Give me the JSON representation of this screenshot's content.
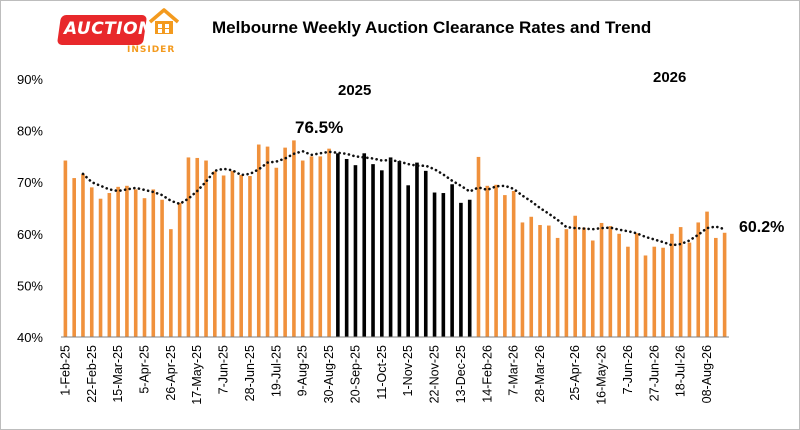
{
  "header": {
    "title": "Melbourne Weekly Auction Clearance Rates and Trend",
    "logo_word": "AUCTION",
    "logo_sub": "INSIDER"
  },
  "colors": {
    "bar_default": "#f0913c",
    "bar_highlight": "#000000",
    "trend": "#111111",
    "logo_red": "#e8282b",
    "logo_orange": "#f39a1e"
  },
  "chart_data": {
    "type": "bar",
    "title": "Melbourne Weekly Auction Clearance Rates and Trend",
    "xlabel": "",
    "ylabel": "",
    "ylim": [
      40,
      90
    ],
    "y_ticks": [
      "40%",
      "50%",
      "60%",
      "70%",
      "80%",
      "90%"
    ],
    "y_tick_values": [
      40,
      50,
      60,
      70,
      80,
      90
    ],
    "grid": false,
    "x_tick_labels": [
      "1-Feb-25",
      "22-Feb-25",
      "15-Mar-25",
      "5-Apr-25",
      "26-Apr-25",
      "17-May-25",
      "7-Jun-25",
      "28-Jun-25",
      "19-Jul-25",
      "9-Aug-25",
      "30-Aug-25",
      "20-Sep-25",
      "11-Oct-25",
      "1-Nov-25",
      "22-Nov-25",
      "13-Dec-25",
      "14-Feb-26",
      "7-Mar-26",
      "28-Mar-26",
      "25-Apr-26",
      "16-May-26",
      "7-Jun-26",
      "27-Jun-26",
      "18-Jul-26",
      "08-Aug-26"
    ],
    "x_tick_bar_index": [
      0,
      3,
      6,
      9,
      12,
      15,
      18,
      21,
      24,
      27,
      30,
      33,
      36,
      39,
      42,
      45,
      48,
      51,
      54,
      58,
      61,
      64,
      67,
      70,
      73
    ],
    "series": [
      {
        "values": [
          74.2,
          70.8,
          71.6,
          69.0,
          66.8,
          67.9,
          69.1,
          69.3,
          68.6,
          66.9,
          68.6,
          66.6,
          60.9,
          66.0,
          74.8,
          74.7,
          74.2,
          72.1,
          71.3,
          72.2,
          71.4,
          71.2,
          77.3,
          76.9,
          72.8,
          76.7,
          78.1,
          74.2,
          75.0,
          75.0,
          76.5,
          75.6,
          74.5,
          73.3,
          75.6,
          73.5,
          72.3,
          74.8,
          74.1,
          69.4,
          73.8,
          72.2,
          68.0,
          67.9,
          69.6,
          66.0,
          66.6,
          74.9,
          69.3,
          69.5,
          67.5,
          68.3,
          62.2,
          63.3,
          61.7,
          61.6,
          59.2,
          60.9,
          63.5,
          61.2,
          58.7,
          62.1,
          61.5,
          60.0,
          57.5,
          60.1,
          55.8,
          57.5,
          57.3,
          60.0,
          61.3,
          58.3,
          62.2,
          64.3,
          59.2,
          60.2
        ],
        "highlight_range": [
          31,
          46
        ]
      },
      {
        "type": "line",
        "style": "dotted",
        "values": [
          null,
          null,
          71.6,
          70.0,
          69.3,
          68.6,
          68.3,
          68.6,
          68.9,
          68.5,
          68.1,
          67.5,
          66.4,
          65.8,
          66.8,
          68.3,
          70.1,
          72.2,
          72.6,
          72.3,
          71.4,
          71.6,
          72.5,
          73.8,
          74.0,
          74.6,
          75.5,
          76.0,
          75.3,
          75.6,
          75.9,
          75.7,
          75.5,
          75.0,
          74.8,
          74.6,
          74.2,
          74.3,
          74.0,
          73.5,
          73.2,
          73.2,
          72.5,
          71.5,
          70.3,
          69.3,
          68.2,
          69.0,
          68.5,
          69.2,
          69.3,
          68.7,
          67.4,
          66.3,
          65.0,
          63.9,
          62.7,
          61.3,
          61.1,
          61.0,
          60.9,
          61.1,
          61.2,
          60.8,
          60.5,
          60.1,
          59.4,
          58.9,
          58.4,
          57.8,
          58.0,
          58.7,
          59.8,
          61.1,
          61.4,
          60.9
        ]
      }
    ],
    "annotations": [
      {
        "text": "76.5%",
        "bar_index": 30
      },
      {
        "text": "60.2%",
        "bar_index": 75
      },
      {
        "text": "2025"
      },
      {
        "text": "2026"
      }
    ]
  }
}
